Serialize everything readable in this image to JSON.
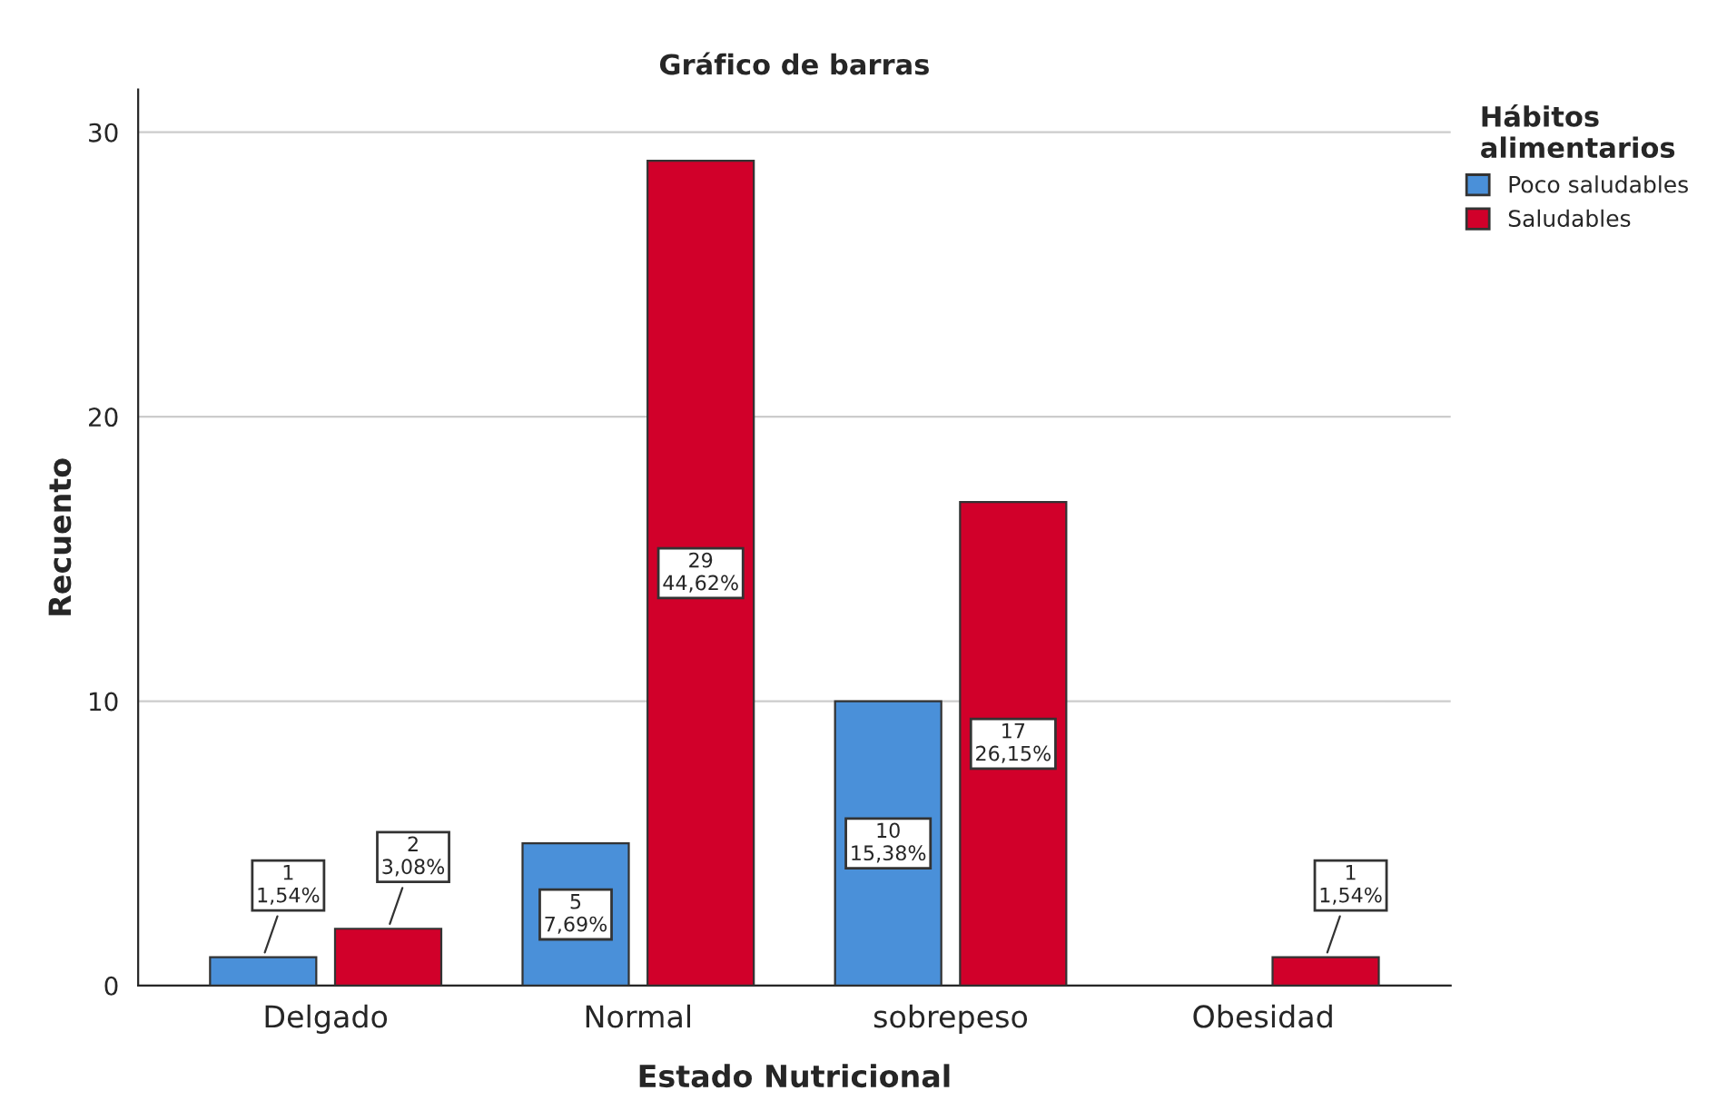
{
  "chart_data": {
    "type": "bar",
    "title": "Gráfico de barras",
    "xlabel": "Estado Nutricional",
    "ylabel": "Recuento",
    "legend_title": "Hábitos alimentarios",
    "categories": [
      "Delgado",
      "Normal",
      "sobrepeso",
      "Obesidad"
    ],
    "series": [
      {
        "name": "Poco saludables",
        "color": "#4a90d9",
        "values": [
          1,
          5,
          10,
          null
        ],
        "value_labels": [
          "1\n1,54%",
          "5\n7,69%",
          "10\n15,38%",
          null
        ]
      },
      {
        "name": "Saludables",
        "color": "#d1002a",
        "values": [
          2,
          29,
          17,
          1
        ],
        "value_labels": [
          "2\n3,08%",
          "29\n44,62%",
          "17\n26,15%",
          "1\n1,54%"
        ]
      }
    ],
    "ylim": [
      0,
      31.5
    ],
    "yticks": [
      0,
      10,
      20,
      30
    ],
    "grid": "y",
    "legend": "top right"
  }
}
